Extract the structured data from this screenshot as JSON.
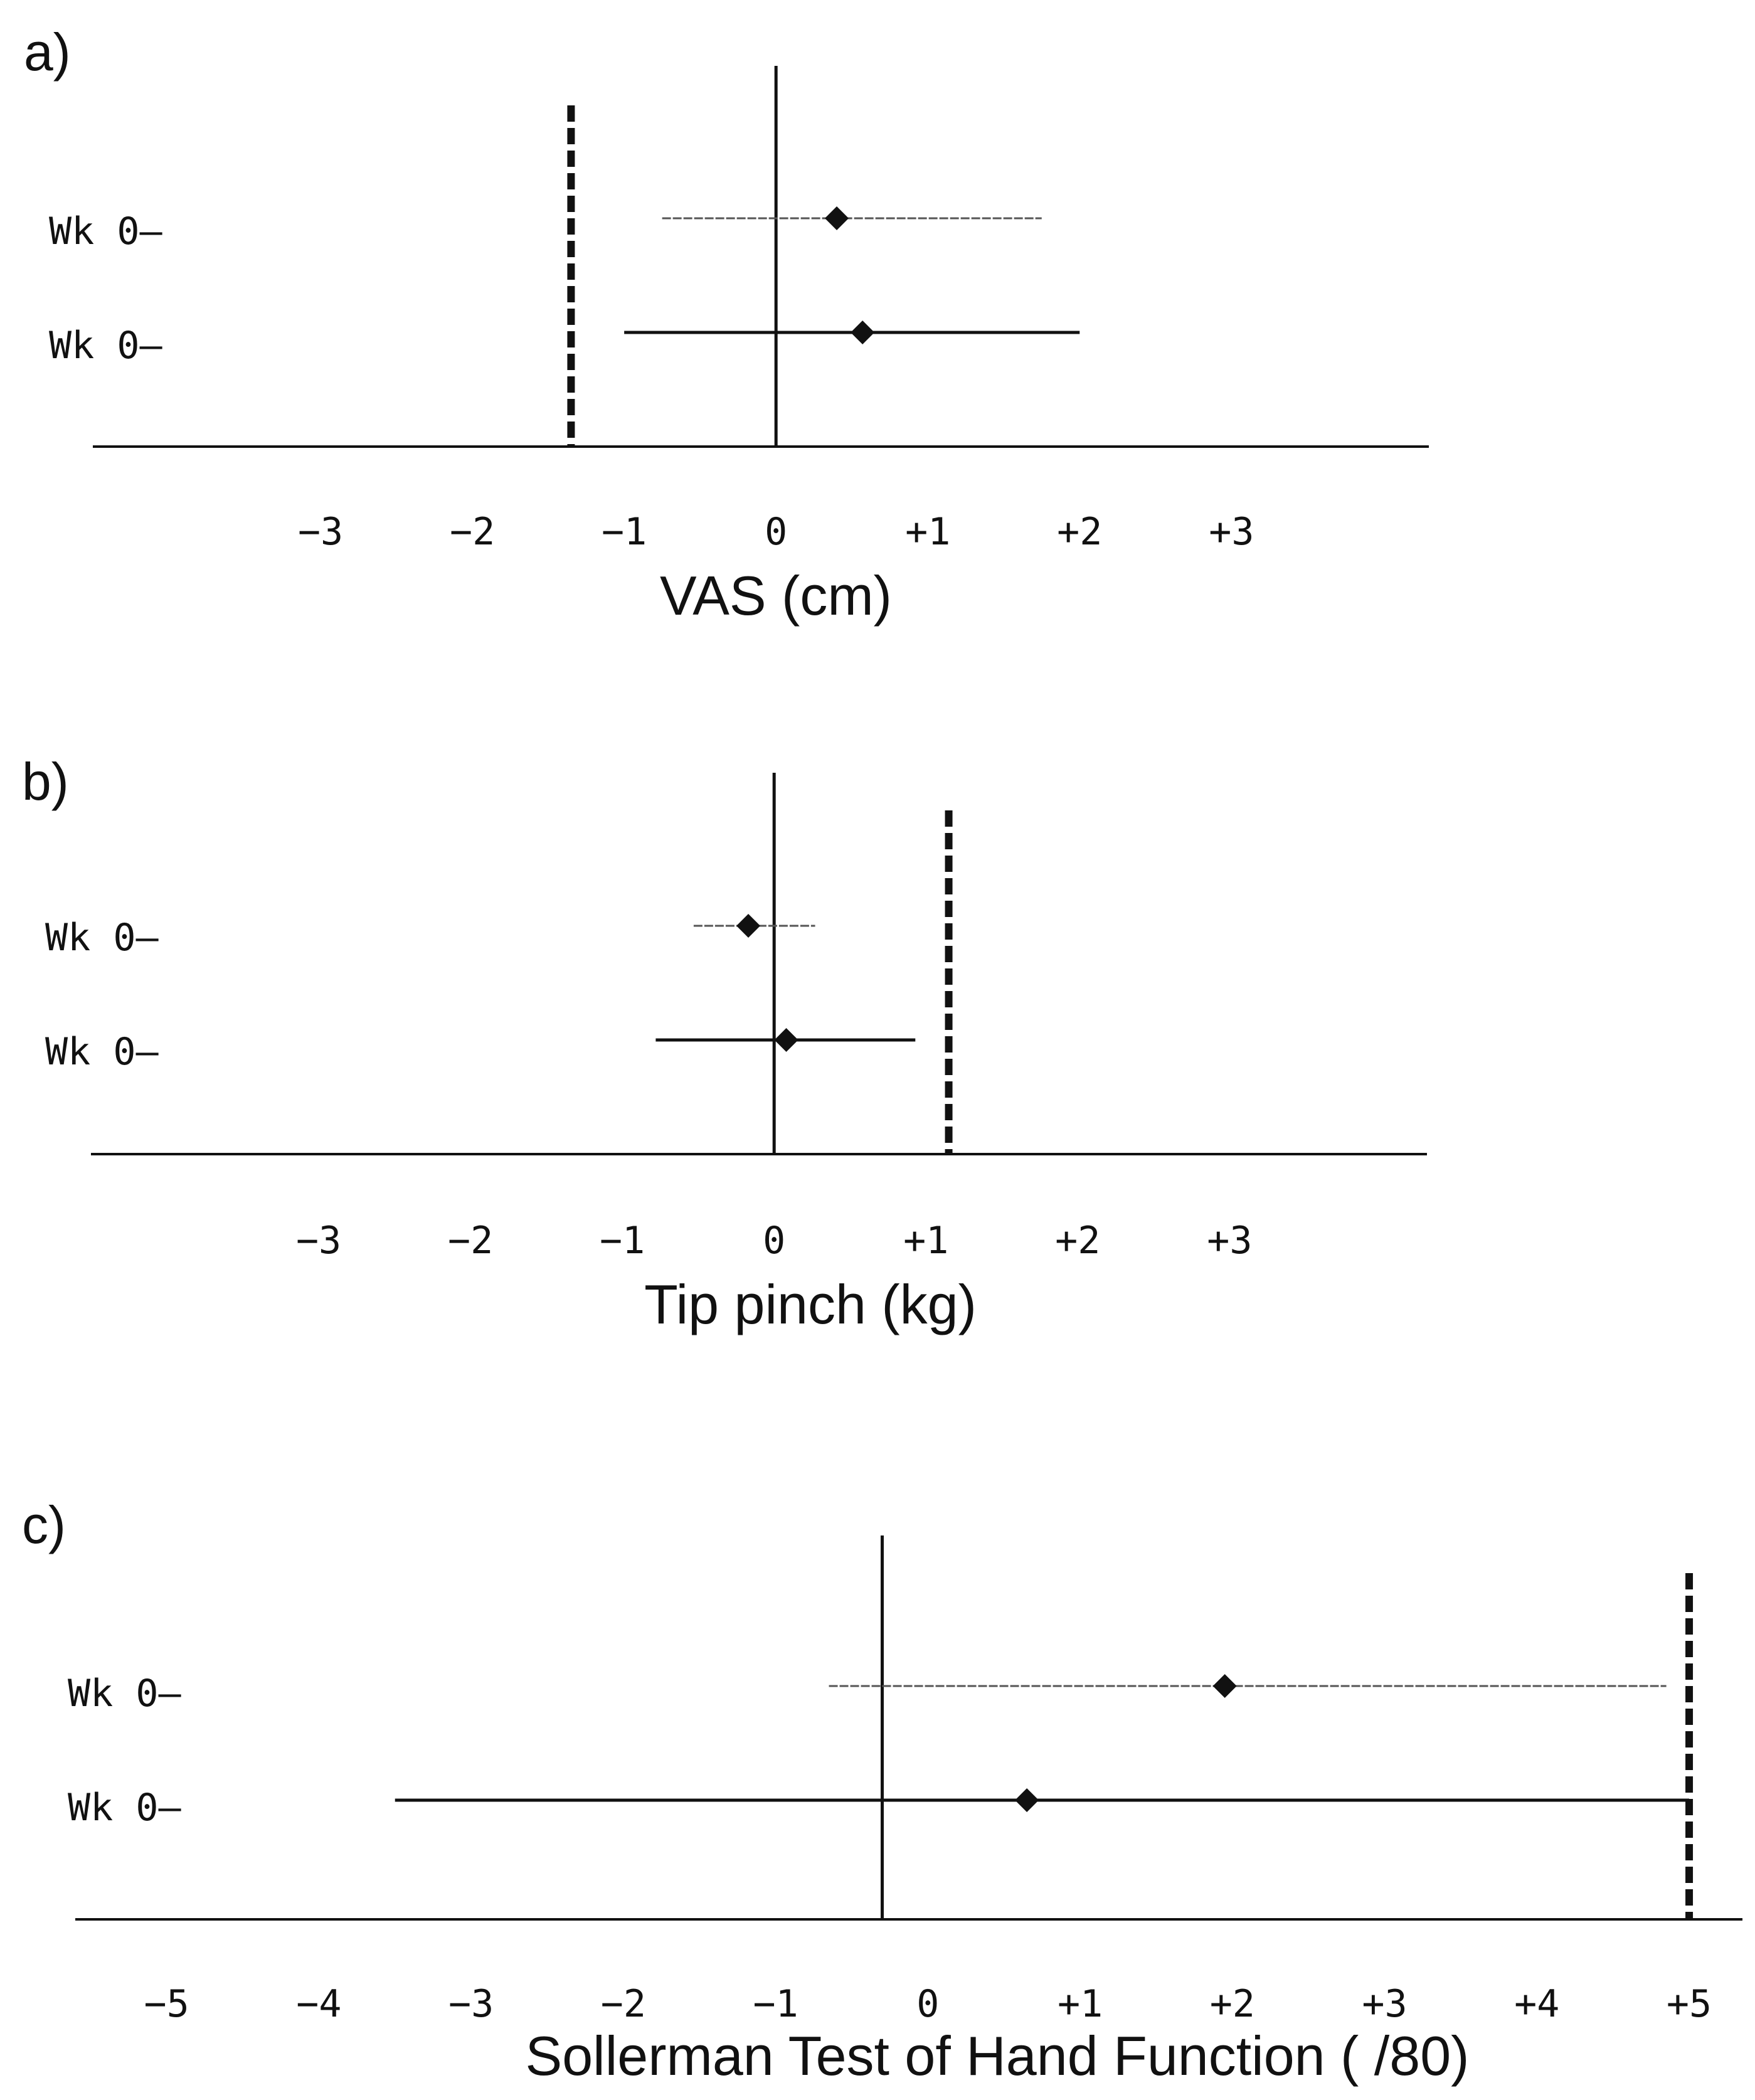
{
  "chart_data": [
    {
      "type": "forest",
      "panel": "a)",
      "xlabel": "VAS (cm)",
      "xlim": [
        -4.5,
        4.3
      ],
      "ticks": [
        -3,
        -2,
        -1,
        0,
        1,
        2,
        3
      ],
      "tick_labels": [
        "−3",
        "−2",
        "−1",
        "0",
        "+1",
        "+2",
        "+3"
      ],
      "reference_line": 0,
      "threshold_line": -1.35,
      "series": [
        {
          "label": "Wk 0–",
          "estimate": 0.4,
          "lower": -0.75,
          "upper": 1.75,
          "style": "light"
        },
        {
          "label": "Wk 0–",
          "estimate": 0.57,
          "lower": -1.0,
          "upper": 2.0,
          "style": "dark"
        }
      ]
    },
    {
      "type": "forest",
      "panel": "b)",
      "xlabel": "Tip pinch (kg)",
      "xlim": [
        -4.5,
        4.3
      ],
      "ticks": [
        -3,
        -2,
        -1,
        0,
        1,
        2,
        3
      ],
      "tick_labels": [
        "−3",
        "−2",
        "−1",
        "0",
        "+1",
        "+2",
        "+3"
      ],
      "reference_line": 0,
      "threshold_line": 1.15,
      "series": [
        {
          "label": "Wk 0–",
          "estimate": -0.17,
          "lower": -0.53,
          "upper": 0.27,
          "style": "light"
        },
        {
          "label": "Wk 0–",
          "estimate": 0.08,
          "lower": -0.78,
          "upper": 0.93,
          "style": "dark"
        }
      ]
    },
    {
      "type": "forest",
      "panel": "c)",
      "xlabel": "Sollerman Test of Hand Function ( /80)",
      "xlim": [
        -5.6,
        5.35
      ],
      "ticks": [
        -5,
        -4,
        -3,
        -2,
        -1,
        0,
        1,
        2,
        3,
        4,
        5
      ],
      "tick_labels": [
        "−5",
        "−4",
        "−3",
        "−2",
        "−1",
        "0",
        "+1",
        "+2",
        "+3",
        "+4",
        "+5"
      ],
      "reference_line": -0.3,
      "threshold_line": 5.0,
      "series": [
        {
          "label": "Wk 0–",
          "estimate": 1.95,
          "lower": -0.65,
          "upper": 4.85,
          "style": "light"
        },
        {
          "label": "Wk 0–",
          "estimate": 0.65,
          "lower": -3.5,
          "upper": 5.0,
          "style": "dark"
        }
      ]
    }
  ]
}
